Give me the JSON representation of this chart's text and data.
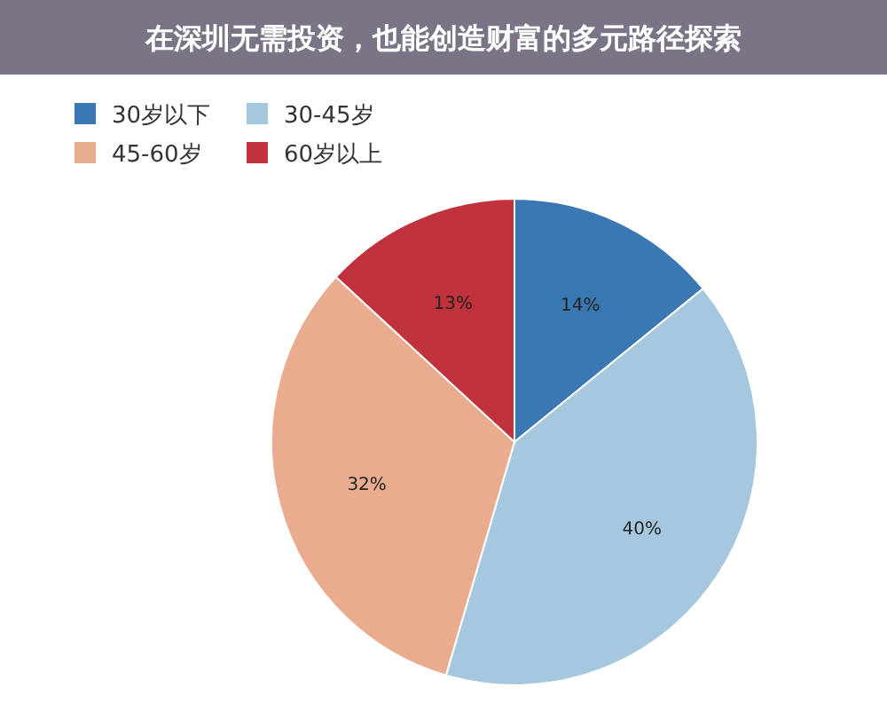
{
  "chart_data": {
    "type": "pie",
    "title": "在深圳无需投资，也能创造财富的多元路径探索",
    "categories": [
      "30岁以下",
      "30-45岁",
      "45-60岁",
      "60岁以上"
    ],
    "values": [
      14,
      40,
      32,
      13
    ],
    "colors": [
      "#3a78b4",
      "#a6c8de",
      "#eaac8f",
      "#c0323c"
    ],
    "value_labels": [
      "14%",
      "40%",
      "32%",
      "13%"
    ],
    "legend": "top left"
  }
}
